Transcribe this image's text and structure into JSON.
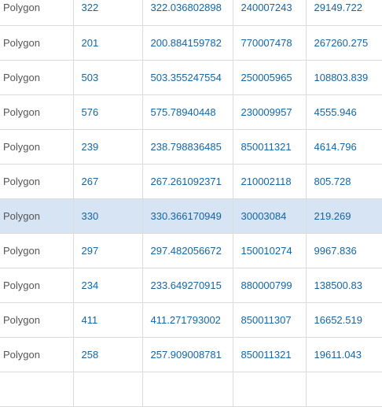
{
  "table": {
    "rows": [
      [
        "Polygon",
        "322",
        "322.036802898",
        "240007243",
        "29149.722"
      ],
      [
        "Polygon",
        "201",
        "200.884159782",
        "770007478",
        "267260.275"
      ],
      [
        "Polygon",
        "503",
        "503.355247554",
        "250005965",
        "108803.839"
      ],
      [
        "Polygon",
        "576",
        "575.78940448",
        "230009957",
        "4555.946"
      ],
      [
        "Polygon",
        "239",
        "238.798836485",
        "850011321",
        "4614.796"
      ],
      [
        "Polygon",
        "267",
        "267.261092371",
        "210002118",
        "805.728"
      ],
      [
        "Polygon",
        "330",
        "330.366170949",
        "30003084",
        "219.269"
      ],
      [
        "Polygon",
        "297",
        "297.482056672",
        "150010274",
        "9967.836"
      ],
      [
        "Polygon",
        "234",
        "233.649270915",
        "880000799",
        "138500.83"
      ],
      [
        "Polygon",
        "411",
        "411.271793002",
        "850011307",
        "16652.519"
      ],
      [
        "Polygon",
        "258",
        "257.909008781",
        "850011321",
        "19611.043"
      ],
      [
        "",
        "",
        "",
        "",
        ""
      ]
    ],
    "selected_row": 6
  }
}
